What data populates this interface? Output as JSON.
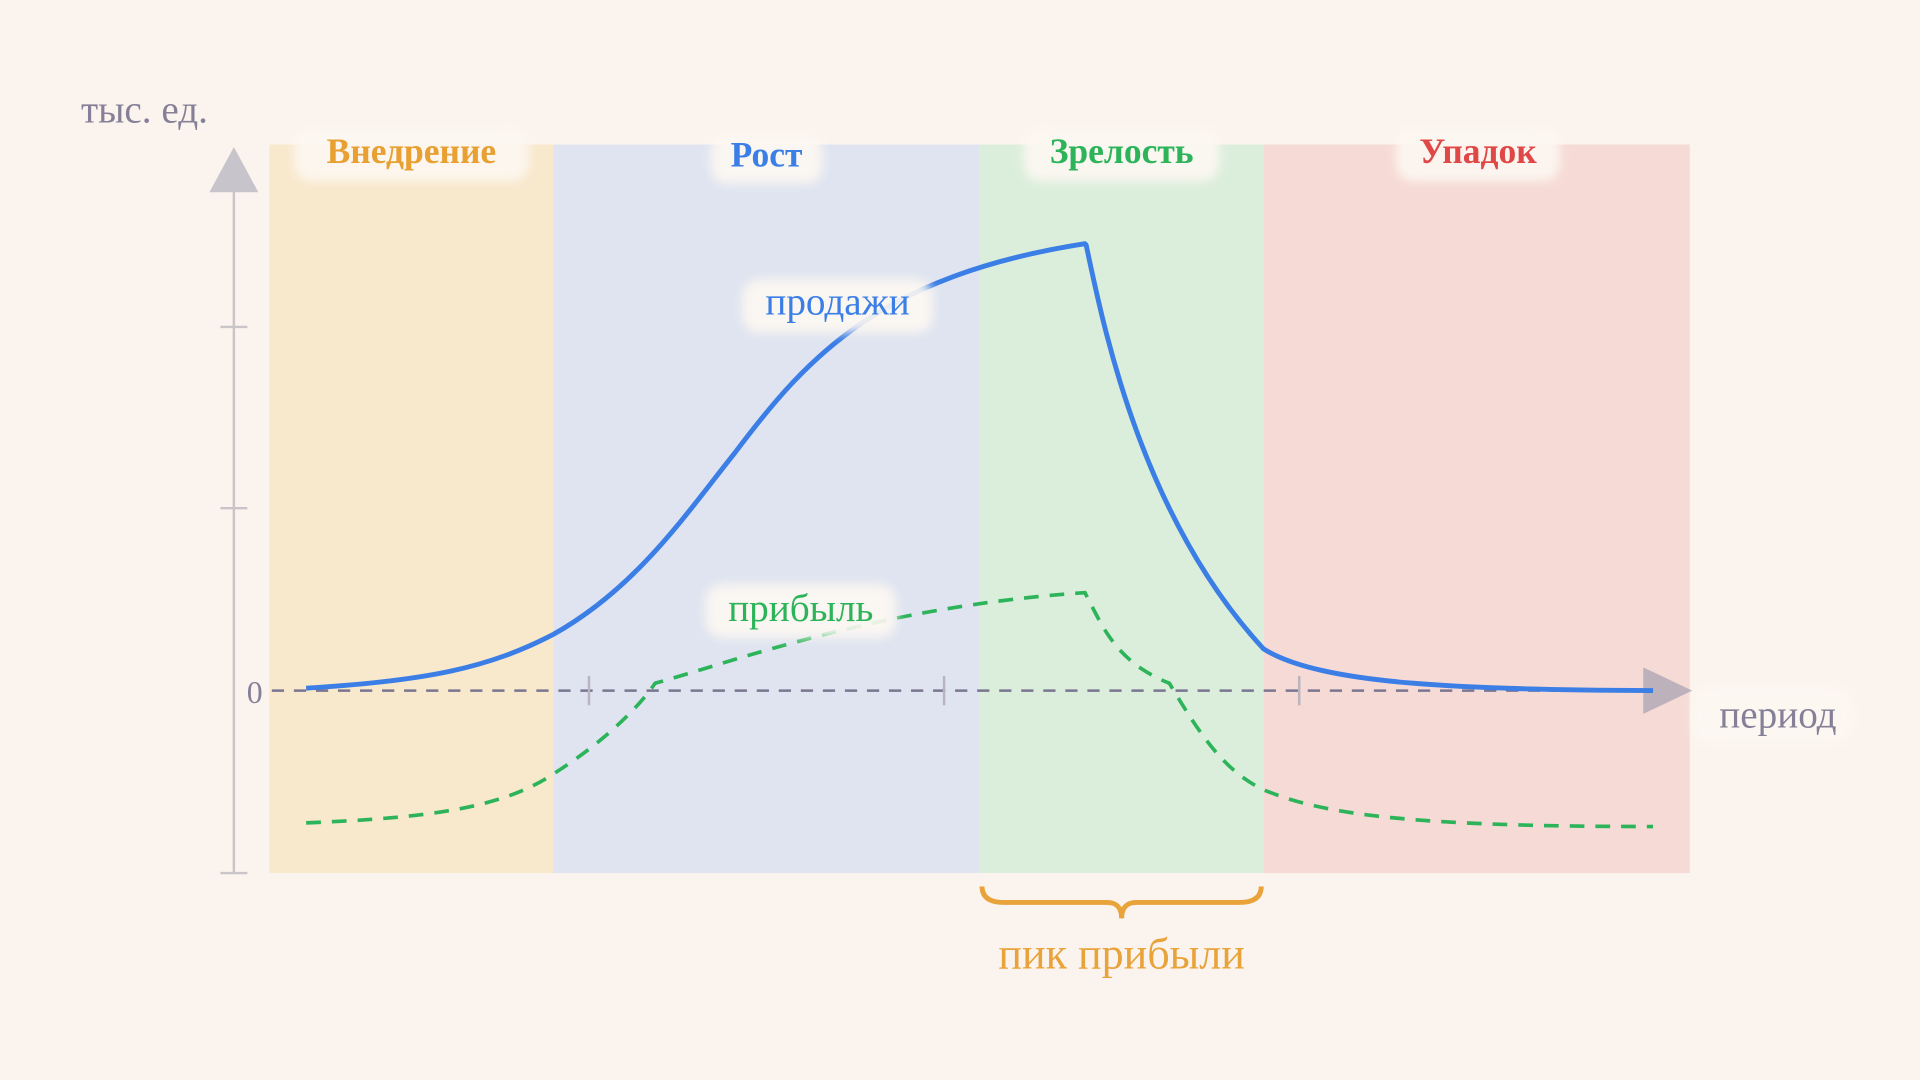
{
  "axes": {
    "y_label": "тыс. ед.",
    "zero": "0",
    "x_label": "период"
  },
  "stages": [
    "Внедрение",
    "Рост",
    "Зрелость",
    "Упадок"
  ],
  "curves": {
    "sales": "продажи",
    "profit": "прибыль"
  },
  "annotation": "пик прибыли"
}
